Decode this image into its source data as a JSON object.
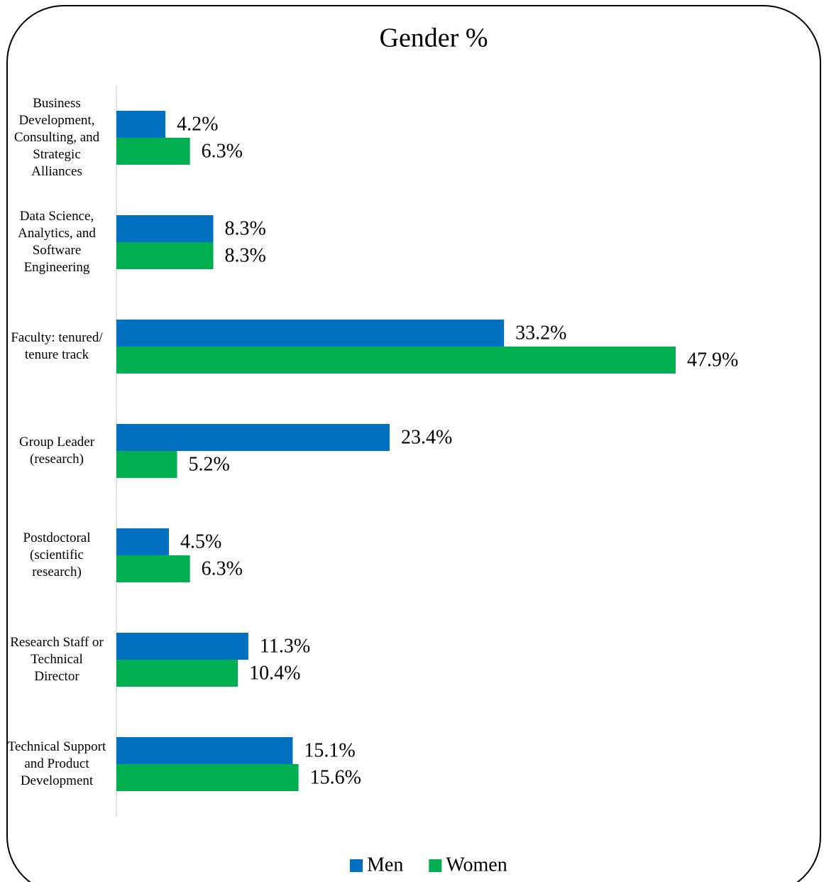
{
  "chart_data": {
    "type": "hbar",
    "title": "Gender %",
    "categories": [
      "Business Development, Consulting, and Strategic Alliances",
      "Data Science, Analytics, and Software Engineering",
      "Faculty: tenured/ tenure track",
      "Group Leader (research)",
      "Postdoctoral (scientific research)",
      "Research Staff or Technical Director",
      "Technical Support and Product Development"
    ],
    "series": [
      {
        "name": "Men",
        "color": "#0070c0",
        "values": [
          4.2,
          8.3,
          33.2,
          23.4,
          4.5,
          11.3,
          15.1
        ],
        "value_labels": [
          "4.2%",
          "8.3%",
          "33.2%",
          "23.4%",
          "4.5%",
          "11.3%",
          "15.1%"
        ]
      },
      {
        "name": "Women",
        "color": "#00b050",
        "values": [
          6.3,
          8.3,
          47.9,
          5.2,
          6.3,
          10.4,
          15.6
        ],
        "value_labels": [
          "6.3%",
          "8.3%",
          "47.9%",
          "5.2%",
          "6.3%",
          "10.4%",
          "15.6%"
        ]
      }
    ],
    "legend": "bottom"
  }
}
